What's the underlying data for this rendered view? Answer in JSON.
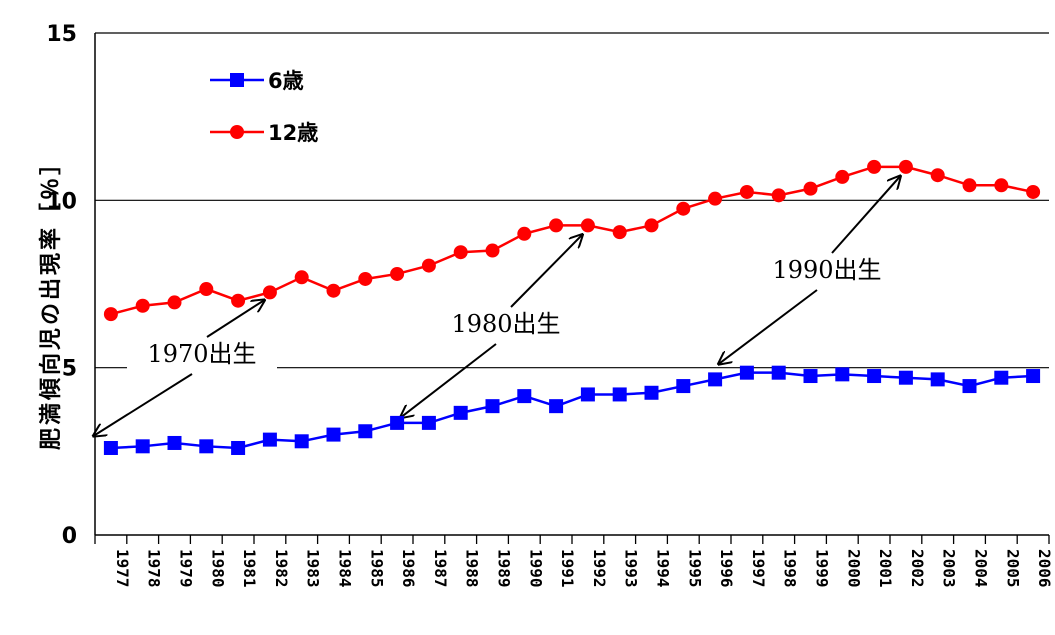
{
  "chart_data": {
    "type": "line",
    "title": "",
    "xlabel": "",
    "ylabel": "肥満傾向児の出現率［％］",
    "ylim": [
      0,
      15
    ],
    "yticks": [
      0,
      5,
      10,
      15
    ],
    "grid": "horizontal",
    "legend_position": "top-left",
    "categories": [
      "1977",
      "1978",
      "1979",
      "1980",
      "1981",
      "1982",
      "1983",
      "1984",
      "1985",
      "1986",
      "1987",
      "1988",
      "1989",
      "1990",
      "1991",
      "1992",
      "1993",
      "1994",
      "1995",
      "1996",
      "1997",
      "1998",
      "1999",
      "2000",
      "2001",
      "2002",
      "2003",
      "2004",
      "2005",
      "2006"
    ],
    "series": [
      {
        "name": "6歳",
        "color": "#0000ff",
        "marker": "square",
        "values": [
          2.6,
          2.65,
          2.75,
          2.65,
          2.6,
          2.85,
          2.8,
          3.0,
          3.1,
          3.35,
          3.35,
          3.65,
          3.85,
          4.15,
          3.85,
          4.2,
          4.2,
          4.25,
          4.45,
          4.65,
          4.85,
          4.85,
          4.75,
          4.8,
          4.75,
          4.7,
          4.65,
          4.45,
          4.7,
          4.75
        ]
      },
      {
        "name": "12歳",
        "color": "#ff0000",
        "marker": "circle",
        "values": [
          6.6,
          6.85,
          6.95,
          7.35,
          7.0,
          7.25,
          7.7,
          7.3,
          7.65,
          7.8,
          8.05,
          8.45,
          8.5,
          9.0,
          9.25,
          9.25,
          9.05,
          9.25,
          9.75,
          10.05,
          10.25,
          10.15,
          10.35,
          10.7,
          11.0,
          11.0,
          10.75,
          10.45,
          10.45,
          10.25
        ]
      }
    ],
    "annotations": [
      {
        "text": "1970出生",
        "from_year": 1982,
        "from_value": 7.25,
        "to_index_start": -0.6,
        "to_value": 2.85
      },
      {
        "text": "1980出生",
        "from_year": 1992,
        "from_value": 9.2,
        "to_year": 1986,
        "to_value": 3.4
      },
      {
        "text": "1990出生",
        "from_year": 2002,
        "from_value": 10.95,
        "to_year": 1996,
        "to_value": 5.0
      }
    ]
  }
}
